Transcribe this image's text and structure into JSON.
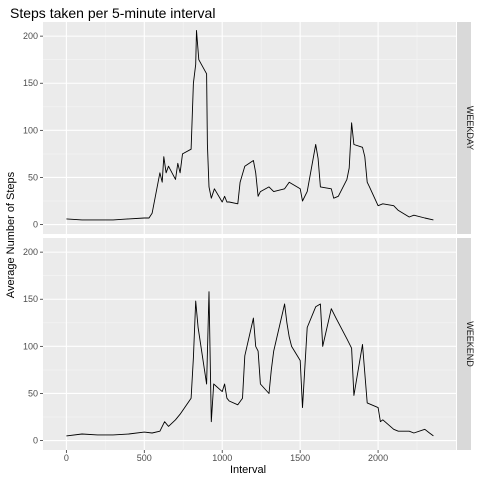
{
  "chart_data": {
    "type": "line",
    "title": "Steps taken per 5-minute interval",
    "xlabel": "Interval",
    "ylabel": "Average Number of Steps",
    "xlim": [
      -150,
      2500
    ],
    "ylim": [
      -10,
      215
    ],
    "x_ticks": [
      0,
      500,
      1000,
      1500,
      2000
    ],
    "x_tick_labels": [
      "0",
      "500",
      "1000",
      "1500",
      "2000"
    ],
    "y_ticks": [
      0,
      50,
      100,
      150,
      200
    ],
    "y_tick_labels": [
      "0",
      "50",
      "100",
      "150",
      "200"
    ],
    "grid": true,
    "facet_strip_position": "right",
    "panels": [
      {
        "strip_label": "WEEKDAY",
        "series": [
          {
            "x": [
              0,
              100,
              200,
              300,
              400,
              500,
              530,
              550,
              600,
              615,
              625,
              640,
              655,
              700,
              715,
              730,
              745,
              800,
              815,
              830,
              835,
              840,
              850,
              900,
              905,
              915,
              930,
              950,
              1000,
              1015,
              1030,
              1045,
              1100,
              1115,
              1145,
              1200,
              1215,
              1230,
              1245,
              1300,
              1330,
              1400,
              1430,
              1500,
              1515,
              1545,
              1600,
              1615,
              1630,
              1700,
              1715,
              1745,
              1800,
              1815,
              1830,
              1845,
              1900,
              1915,
              1930,
              1945,
              2000,
              2030,
              2100,
              2130,
              2200,
              2230,
              2300,
              2355
            ],
            "values": [
              6,
              5,
              5,
              5,
              6,
              7,
              7,
              12,
              55,
              45,
              72,
              55,
              62,
              48,
              65,
              55,
              75,
              80,
              150,
              170,
              206,
              195,
              175,
              160,
              85,
              40,
              28,
              38,
              24,
              30,
              24,
              24,
              22,
              45,
              62,
              68,
              55,
              30,
              35,
              40,
              35,
              38,
              45,
              38,
              25,
              35,
              85,
              70,
              40,
              38,
              28,
              30,
              48,
              60,
              108,
              85,
              82,
              72,
              45,
              40,
              20,
              22,
              20,
              15,
              8,
              10,
              7,
              5
            ]
          }
        ]
      },
      {
        "strip_label": "WEEKEND",
        "series": [
          {
            "x": [
              0,
              100,
              200,
              300,
              400,
              500,
              550,
              600,
              630,
              655,
              700,
              730,
              800,
              815,
              830,
              845,
              900,
              915,
              930,
              945,
              1000,
              1015,
              1030,
              1045,
              1100,
              1130,
              1145,
              1200,
              1215,
              1230,
              1245,
              1300,
              1315,
              1330,
              1400,
              1415,
              1430,
              1445,
              1500,
              1515,
              1545,
              1600,
              1630,
              1645,
              1700,
              1730,
              1800,
              1830,
              1845,
              1900,
              1930,
              2000,
              2015,
              2030,
              2100,
              2130,
              2200,
              2230,
              2300,
              2330,
              2355
            ],
            "values": [
              5,
              7,
              6,
              6,
              7,
              9,
              8,
              10,
              20,
              15,
              22,
              28,
              45,
              88,
              148,
              120,
              60,
              158,
              20,
              60,
              52,
              60,
              45,
              42,
              38,
              45,
              90,
              130,
              100,
              95,
              60,
              50,
              75,
              95,
              145,
              125,
              110,
              100,
              85,
              35,
              120,
              142,
              145,
              100,
              140,
              130,
              108,
              98,
              48,
              102,
              40,
              35,
              20,
              22,
              12,
              10,
              10,
              8,
              12,
              8,
              5
            ]
          }
        ]
      }
    ]
  }
}
